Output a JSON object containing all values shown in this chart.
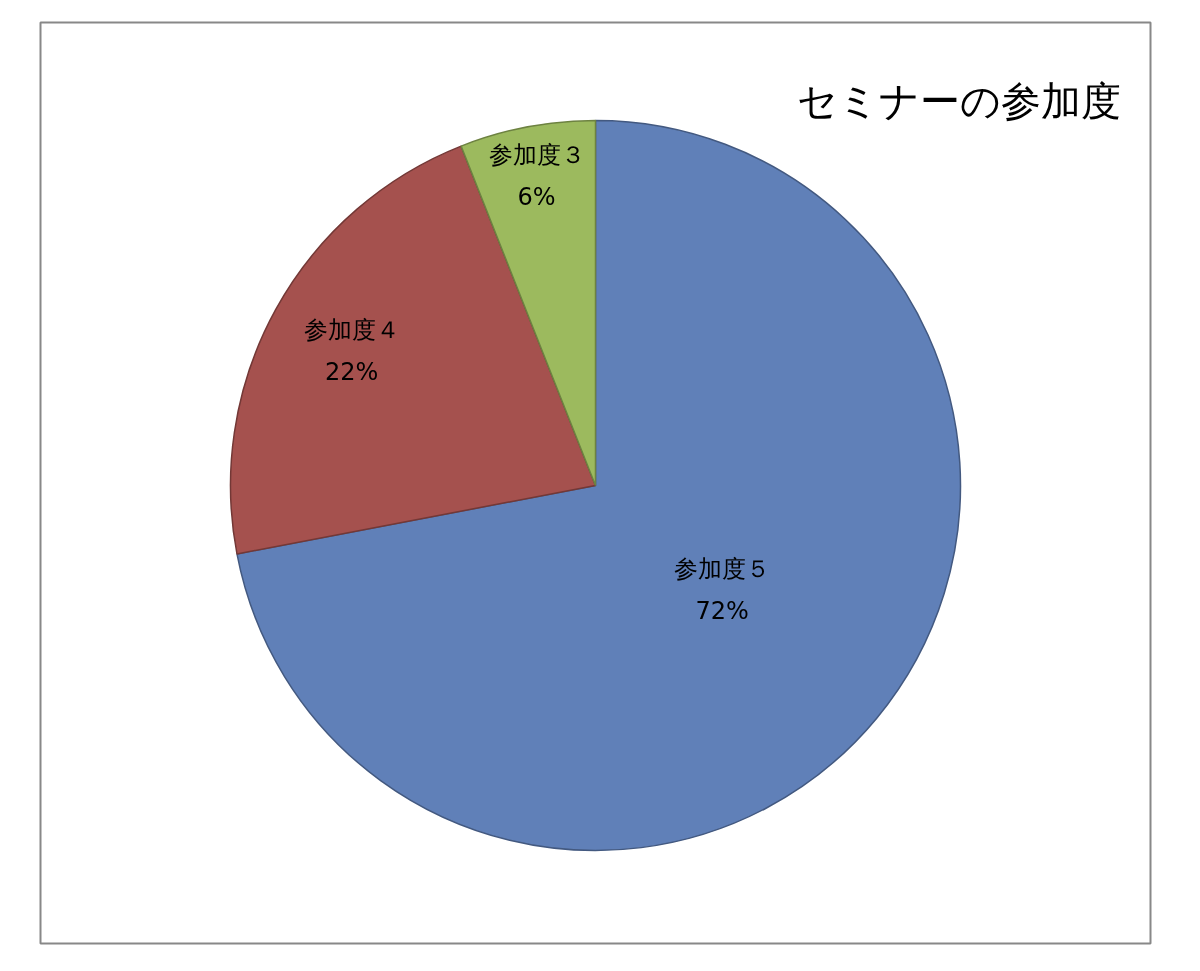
{
  "chart_data": {
    "type": "pie",
    "title": "セミナーの参加度",
    "categories": [
      "参加度５",
      "参加度４",
      "参加度３"
    ],
    "values": [
      72,
      22,
      6
    ],
    "value_labels": [
      "72%",
      "22%",
      "6%"
    ],
    "colors": [
      "#6080b8",
      "#a5514e",
      "#9cba5e"
    ]
  }
}
